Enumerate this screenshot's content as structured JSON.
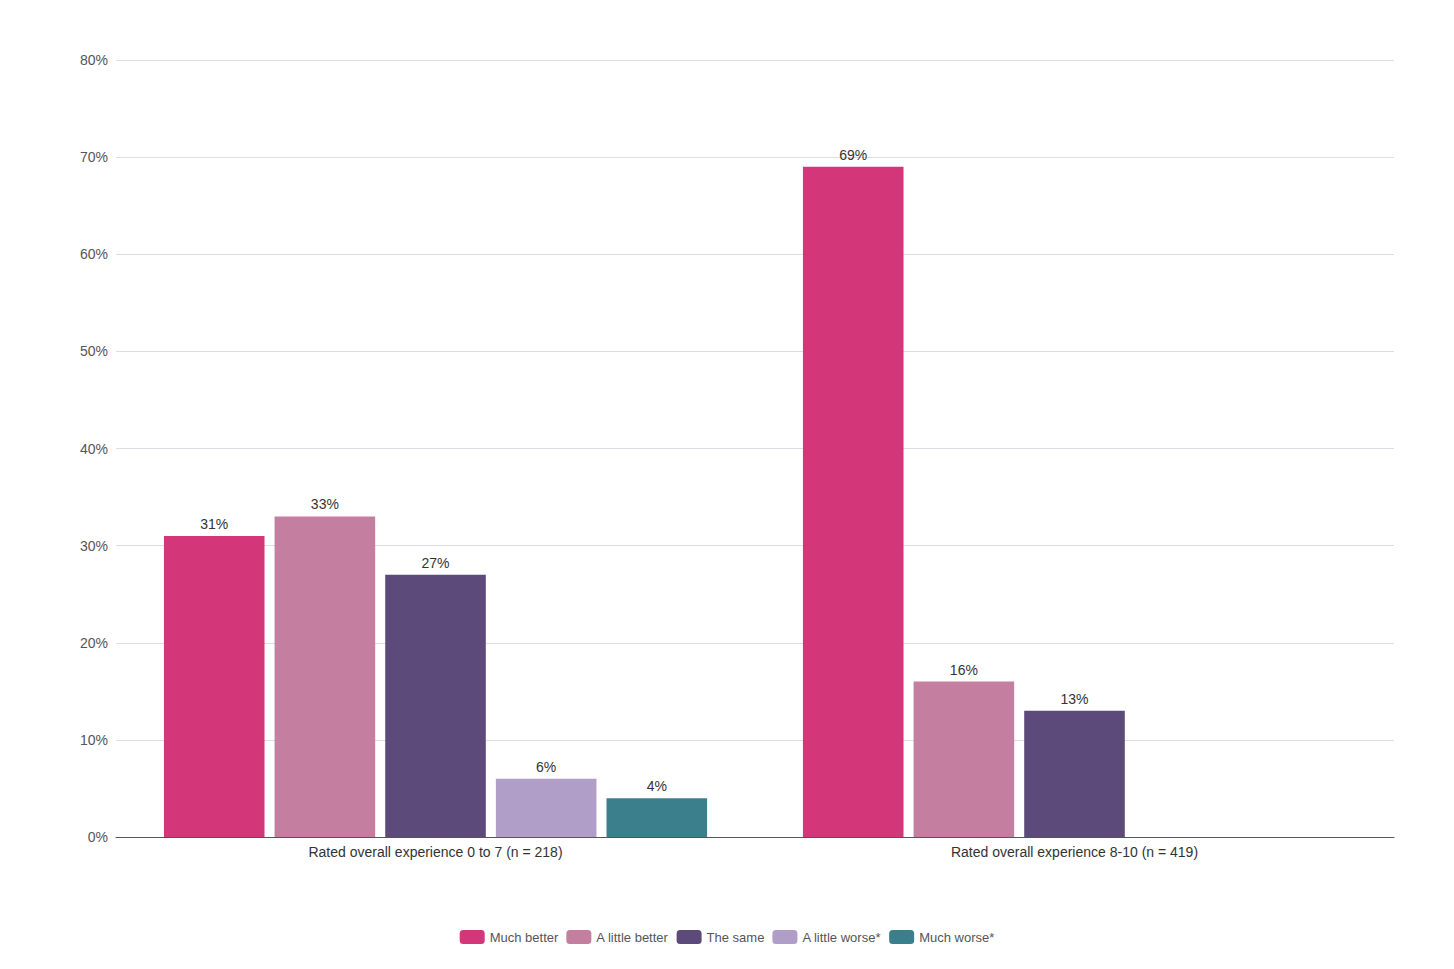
{
  "chart_data": {
    "type": "bar",
    "categories": [
      "Rated overall experience 0 to 7 (n = 218)",
      "Rated overall experience 8-10 (n = 419)"
    ],
    "series": [
      {
        "name": "Much better",
        "color": "#d4367a",
        "values": [
          31,
          69
        ],
        "value_labels": [
          "31%",
          "69%"
        ]
      },
      {
        "name": "A little better",
        "color": "#c47fa0",
        "values": [
          33,
          16
        ],
        "value_labels": [
          "33%",
          "16%"
        ]
      },
      {
        "name": "The same",
        "color": "#5b4a7a",
        "values": [
          27,
          13
        ],
        "value_labels": [
          "27%",
          "13%"
        ]
      },
      {
        "name": "A little worse*",
        "color": "#b09ec9",
        "values": [
          6,
          0
        ],
        "value_labels": [
          "6%",
          null
        ]
      },
      {
        "name": "Much worse*",
        "color": "#3b7f8c",
        "values": [
          4,
          0
        ],
        "value_labels": [
          "4%",
          null
        ]
      }
    ],
    "ylim": [
      0,
      80
    ],
    "yticks": [
      {
        "value": 0,
        "label": "0%"
      },
      {
        "value": 10,
        "label": "10%"
      },
      {
        "value": 20,
        "label": "20%"
      },
      {
        "value": 30,
        "label": "30%"
      },
      {
        "value": 40,
        "label": "40%"
      },
      {
        "value": 50,
        "label": "50%"
      },
      {
        "value": 60,
        "label": "60%"
      },
      {
        "value": 70,
        "label": "70%"
      },
      {
        "value": 80,
        "label": "80%"
      }
    ],
    "grid": true,
    "legend": "bottom",
    "data_labels": true
  }
}
